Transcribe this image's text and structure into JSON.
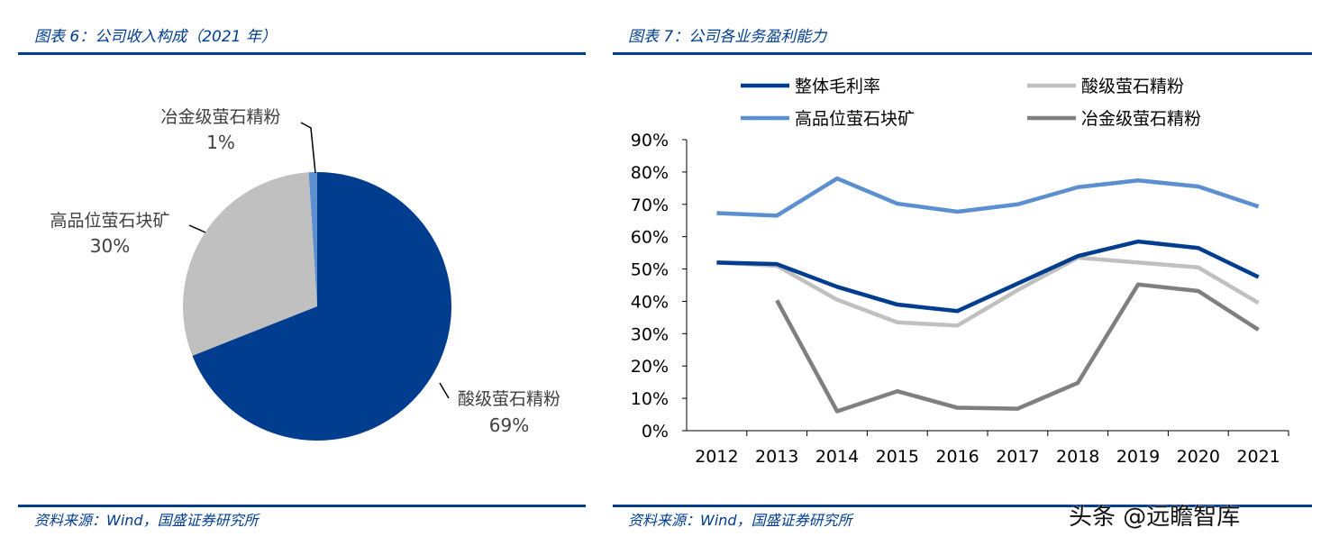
{
  "left_panel": {
    "title": "图表 6：公司收入构成（2021 年）",
    "source": "资料来源：Wind，国盛证券研究所"
  },
  "right_panel": {
    "title": "图表 7：公司各业务盈利能力",
    "source": "资料来源：Wind，国盛证券研究所"
  },
  "watermark": "头条 @远瞻智库",
  "chart_data": [
    {
      "type": "pie",
      "slices": [
        {
          "label": "酸级萤石精粉",
          "value": 69,
          "value_label": "69%",
          "color": "#003d8f"
        },
        {
          "label": "高品位萤石块矿",
          "value": 30,
          "value_label": "30%",
          "color": "#c0c0c0"
        },
        {
          "label": "冶金级萤石精粉",
          "value": 1,
          "value_label": "1%",
          "color": "#5b8fd0"
        }
      ]
    },
    {
      "type": "line",
      "categories": [
        "2012",
        "2013",
        "2014",
        "2015",
        "2016",
        "2017",
        "2018",
        "2019",
        "2020",
        "2021"
      ],
      "ylim": [
        0,
        90
      ],
      "yticks": [
        "0%",
        "10%",
        "20%",
        "30%",
        "40%",
        "50%",
        "60%",
        "70%",
        "80%",
        "90%"
      ],
      "legend": "top",
      "series": [
        {
          "name": "整体毛利率",
          "color": "#003d8f",
          "values": [
            52,
            51.5,
            44.5,
            39,
            37,
            45.5,
            54,
            58.5,
            56.5,
            47.5
          ]
        },
        {
          "name": "酸级萤石精粉",
          "color": "#c0c0c0",
          "values": [
            52,
            51,
            40.5,
            33.5,
            32.5,
            43.5,
            53.5,
            52,
            50.5,
            39.5
          ]
        },
        {
          "name": "高品位萤石块矿",
          "color": "#5b8fd0",
          "values": [
            67.3,
            66.5,
            78,
            70.2,
            67.7,
            70,
            75.3,
            77.4,
            75.5,
            69.3
          ]
        },
        {
          "name": "冶金级萤石精粉",
          "color": "#7f7f7f",
          "values": [
            null,
            40.3,
            6,
            12.2,
            7.1,
            6.8,
            14.8,
            45.2,
            43.2,
            31.2
          ]
        }
      ]
    }
  ]
}
